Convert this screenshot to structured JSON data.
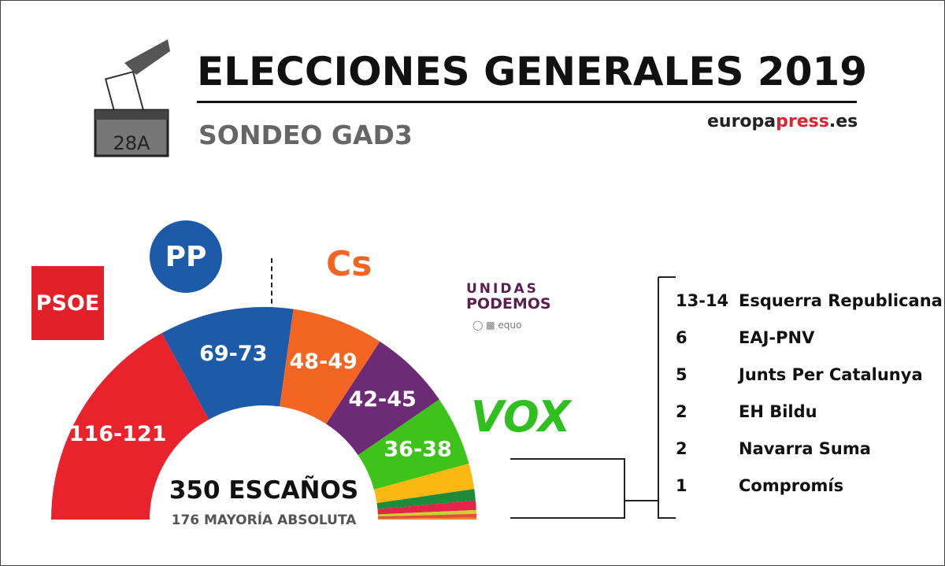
{
  "header": {
    "title": "ELECCIONES GENERALES 2019",
    "subtitle": "SONDEO GAD3",
    "ballot_label": "28A",
    "source_a": "europa",
    "source_b": "press",
    "source_c": ".es"
  },
  "logos": {
    "psoe": "PSOE",
    "pp": "PP",
    "cs": "Cs",
    "up_line1": "UNIDAS",
    "up_line2": "PODEMOS",
    "equo": "equo",
    "vox": "VOX"
  },
  "chart_data": {
    "type": "pie",
    "subtype": "half-donut parliament",
    "title": "350 ESCAÑOS",
    "subtitle": "176 MAYORÍA ABSOLUTA",
    "total": 350,
    "series": [
      {
        "name": "PSOE",
        "label": "116-121",
        "min": 116,
        "max": 121,
        "color": "#e8232b"
      },
      {
        "name": "PP",
        "label": "69-73",
        "min": 69,
        "max": 73,
        "color": "#1d5ba8"
      },
      {
        "name": "Cs",
        "label": "48-49",
        "min": 48,
        "max": 49,
        "color": "#f26522"
      },
      {
        "name": "Unidas Podemos",
        "label": "42-45",
        "min": 42,
        "max": 45,
        "color": "#6d2b76"
      },
      {
        "name": "VOX",
        "label": "36-38",
        "min": 36,
        "max": 38,
        "color": "#3ec31a"
      },
      {
        "name": "Esquerra Republicana",
        "label": "13-14",
        "min": 13,
        "max": 14,
        "color": "#fbb813"
      },
      {
        "name": "EAJ-PNV",
        "label": "6",
        "min": 6,
        "max": 6,
        "color": "#1e8a3a"
      },
      {
        "name": "Junts Per Catalunya",
        "label": "5",
        "min": 5,
        "max": 5,
        "color": "#e8234a"
      },
      {
        "name": "EH Bildu",
        "label": "2",
        "min": 2,
        "max": 2,
        "color": "#c8d42a"
      },
      {
        "name": "Navarra Suma",
        "label": "2",
        "min": 2,
        "max": 2,
        "color": "#e0503a"
      },
      {
        "name": "Compromís",
        "label": "1",
        "min": 1,
        "max": 1,
        "color": "#f0852a"
      }
    ],
    "labeled_count": 5
  }
}
